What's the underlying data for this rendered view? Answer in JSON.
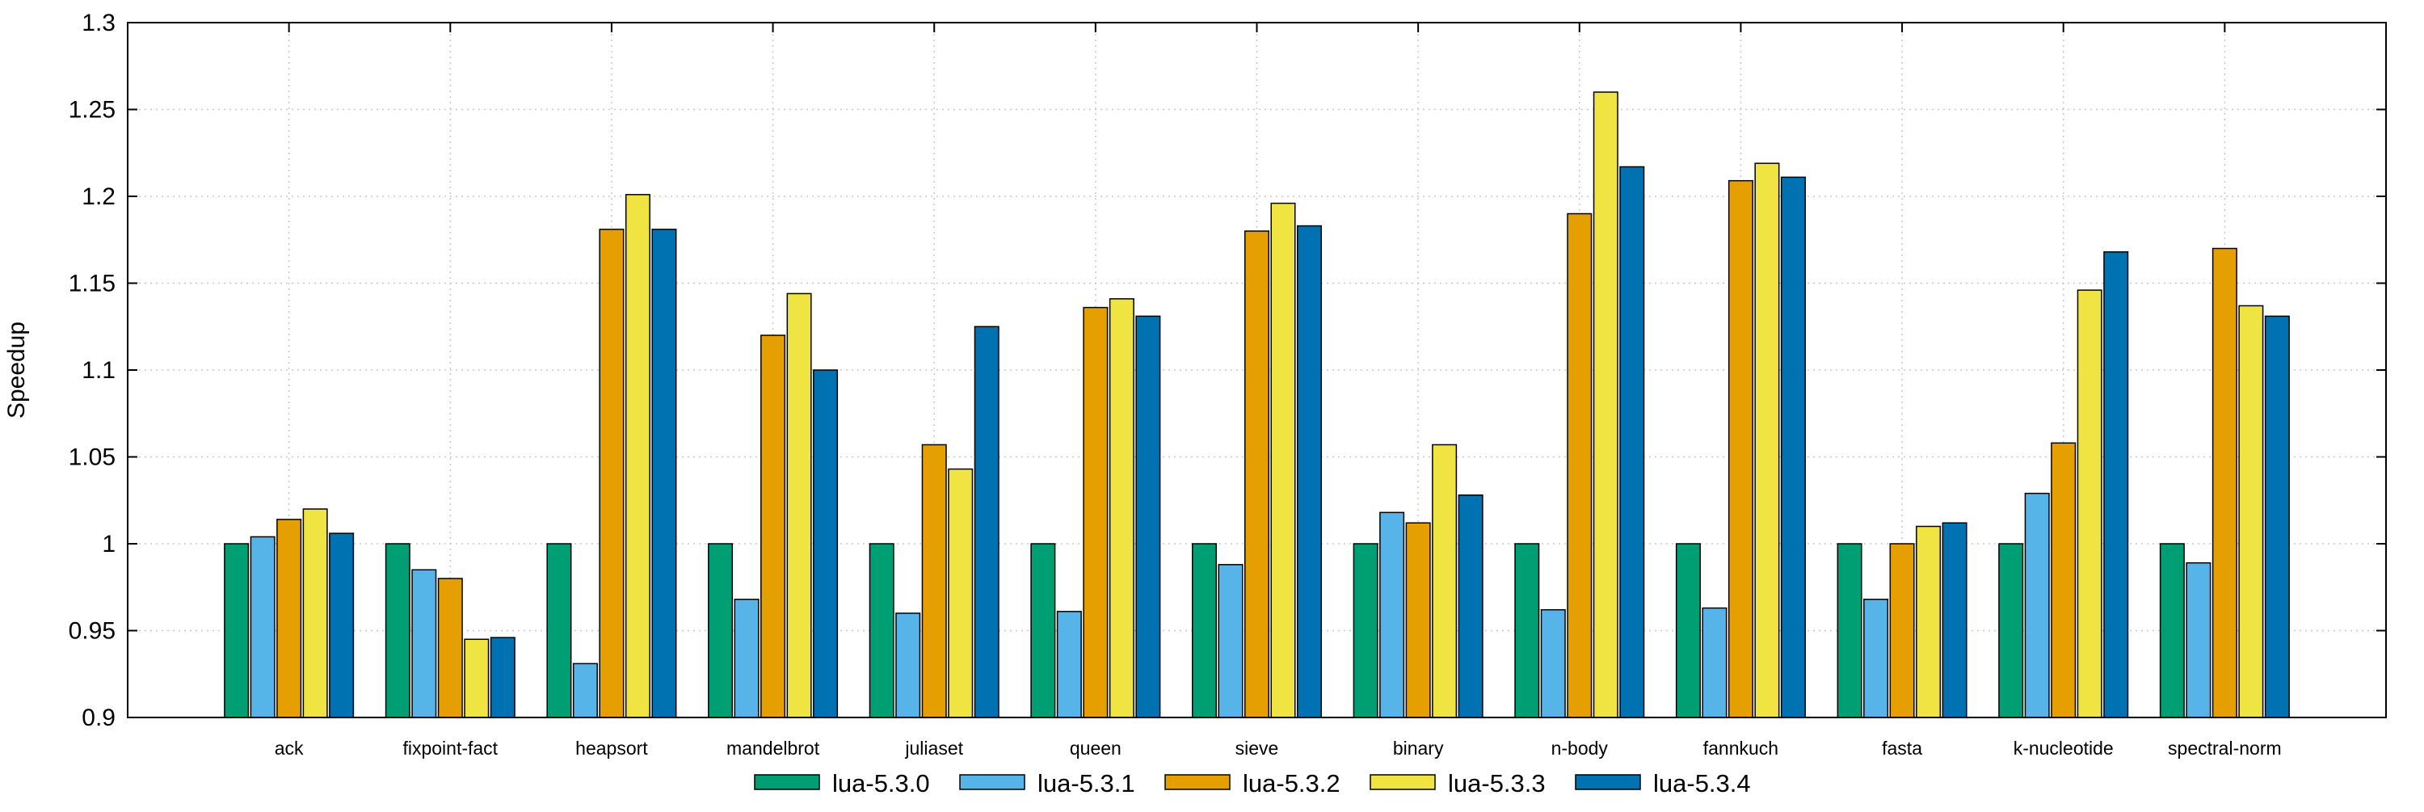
{
  "chart_data": {
    "type": "bar",
    "title": "",
    "xlabel": "",
    "ylabel": "Speedup",
    "ylim": [
      0.9,
      1.3
    ],
    "ytick_values": [
      0.9,
      0.95,
      1.0,
      1.05,
      1.1,
      1.15,
      1.2,
      1.25,
      1.3
    ],
    "ytick_labels": [
      "0.9",
      "0.95",
      "1",
      "1.05",
      "1.1",
      "1.15",
      "1.2",
      "1.25",
      "1.3"
    ],
    "grid": true,
    "grid_color": "#c8c8c8",
    "axis_color": "#000000",
    "legend_position": "bottom-center",
    "categories": [
      "ack",
      "fixpoint-fact",
      "heapsort",
      "mandelbrot",
      "juliaset",
      "queen",
      "sieve",
      "binary",
      "n-body",
      "fannkuch",
      "fasta",
      "k-nucleotide",
      "spectral-norm"
    ],
    "series": [
      {
        "name": "lua-5.3.0",
        "color": "#009E73",
        "values": [
          1.0,
          1.0,
          1.0,
          1.0,
          1.0,
          1.0,
          1.0,
          1.0,
          1.0,
          1.0,
          1.0,
          1.0,
          1.0
        ]
      },
      {
        "name": "lua-5.3.1",
        "color": "#56B4E9",
        "values": [
          1.004,
          0.985,
          0.931,
          0.968,
          0.96,
          0.961,
          0.988,
          1.018,
          0.962,
          0.963,
          0.968,
          1.029,
          0.989
        ]
      },
      {
        "name": "lua-5.3.2",
        "color": "#E69F00",
        "values": [
          1.014,
          0.98,
          1.181,
          1.12,
          1.057,
          1.136,
          1.18,
          1.012,
          1.19,
          1.209,
          1.0,
          1.058,
          1.17
        ]
      },
      {
        "name": "lua-5.3.3",
        "color": "#F0E442",
        "values": [
          1.02,
          0.945,
          1.201,
          1.144,
          1.043,
          1.141,
          1.196,
          1.057,
          1.26,
          1.219,
          1.01,
          1.146,
          1.137
        ]
      },
      {
        "name": "lua-5.3.4",
        "color": "#0072B2",
        "values": [
          1.006,
          0.946,
          1.181,
          1.1,
          1.125,
          1.131,
          1.183,
          1.028,
          1.217,
          1.211,
          1.012,
          1.168,
          1.131
        ]
      }
    ]
  }
}
